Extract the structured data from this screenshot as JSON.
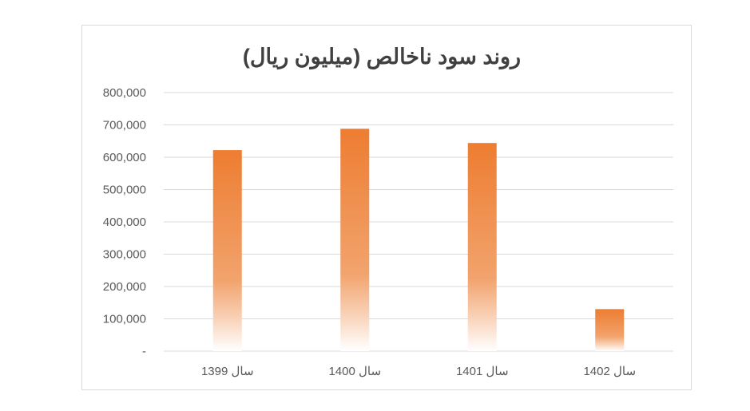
{
  "chart_data": {
    "type": "bar",
    "title": "روند سود ناخالص (میلیون ریال)",
    "categories": [
      "سال 1399",
      "سال 1400",
      "سال 1401",
      "سال 1402"
    ],
    "values": [
      622000,
      688000,
      644000,
      130000
    ],
    "ylim": [
      0,
      800000
    ],
    "y_ticks": [
      {
        "value": 800000,
        "label": "800,000"
      },
      {
        "value": 700000,
        "label": "700,000"
      },
      {
        "value": 600000,
        "label": "600,000"
      },
      {
        "value": 500000,
        "label": "500,000"
      },
      {
        "value": 400000,
        "label": "400,000"
      },
      {
        "value": 300000,
        "label": "300,000"
      },
      {
        "value": 200000,
        "label": "200,000"
      },
      {
        "value": 100000,
        "label": "100,000"
      },
      {
        "value": 0,
        "label": "-"
      }
    ],
    "grid": true,
    "legend": "none",
    "bar_color": "#ED7D31",
    "grid_color": "#d9d9d9"
  }
}
